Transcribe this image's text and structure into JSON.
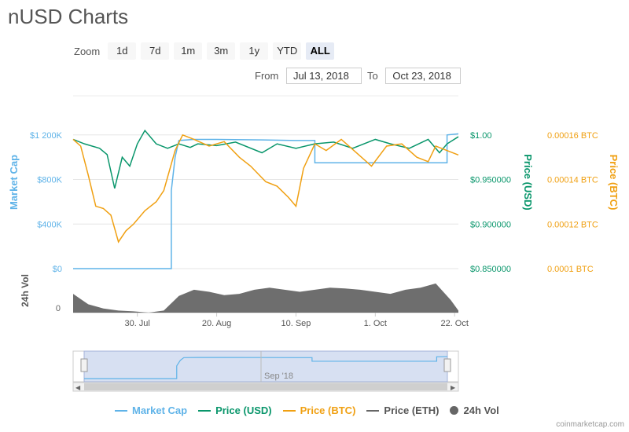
{
  "page_title": "nUSD Charts",
  "zoom": {
    "label": "Zoom",
    "buttons": [
      "1d",
      "7d",
      "1m",
      "3m",
      "1y",
      "YTD",
      "ALL"
    ],
    "active": "ALL"
  },
  "range": {
    "from_label": "From",
    "from_value": "Jul 13, 2018",
    "to_label": "To",
    "to_value": "Oct 23, 2018"
  },
  "colors": {
    "market_cap": "#5fb3e8",
    "price_usd": "#09966b",
    "price_btc": "#f0a012",
    "price_eth": "#666666",
    "volume": "#555555",
    "navigator_fill": "#d7e0f2"
  },
  "axes": {
    "left_title": "Market Cap",
    "left_ticks": [
      "$0",
      "$400K",
      "$800K",
      "$1 200K"
    ],
    "usd_title": "Price (USD)",
    "usd_ticks": [
      "$0.850000",
      "$0.900000",
      "$0.950000",
      "$1.00"
    ],
    "btc_title": "Price (BTC)",
    "btc_ticks": [
      "0.0001 BTC",
      "0.00012 BTC",
      "0.00014 BTC",
      "0.00016 BTC"
    ],
    "vol_title": "24h Vol",
    "vol_ticks": [
      "0"
    ],
    "x_ticks": [
      "30. Jul",
      "20. Aug",
      "10. Sep",
      "1. Oct",
      "22. Oct"
    ],
    "navigator_label": "Sep '18"
  },
  "legend": [
    "Market Cap",
    "Price (USD)",
    "Price (BTC)",
    "Price (ETH)",
    "24h Vol"
  ],
  "credit": "coinmarketcap.com",
  "chart_data": {
    "type": "line",
    "x_range": [
      "2018-07-13",
      "2018-10-23"
    ],
    "series": [
      {
        "name": "Market Cap",
        "axis": "left",
        "unit": "USD",
        "ylim": [
          0,
          1200000
        ],
        "x": [
          "2018-07-13",
          "2018-08-08",
          "2018-08-08",
          "2018-08-09",
          "2018-08-10",
          "2018-08-14",
          "2018-08-20",
          "2018-09-01",
          "2018-09-10",
          "2018-09-15",
          "2018-09-15",
          "2018-09-25",
          "2018-10-05",
          "2018-10-15",
          "2018-10-18",
          "2018-10-20",
          "2018-10-20",
          "2018-10-23"
        ],
        "values": [
          0,
          0,
          700000,
          1000000,
          1150000,
          1160000,
          1160000,
          1155000,
          1150000,
          1150000,
          950000,
          950000,
          950000,
          950000,
          950000,
          950000,
          1200000,
          1210000
        ]
      },
      {
        "name": "Price (USD)",
        "axis": "right",
        "unit": "USD",
        "ylim": [
          0.85,
          1.0
        ],
        "x": [
          "2018-07-13",
          "2018-07-16",
          "2018-07-20",
          "2018-07-22",
          "2018-07-24",
          "2018-07-26",
          "2018-07-28",
          "2018-07-30",
          "2018-08-01",
          "2018-08-04",
          "2018-08-07",
          "2018-08-10",
          "2018-08-13",
          "2018-08-15",
          "2018-08-20",
          "2018-08-25",
          "2018-09-01",
          "2018-09-05",
          "2018-09-10",
          "2018-09-15",
          "2018-09-20",
          "2018-09-25",
          "2018-10-01",
          "2018-10-05",
          "2018-10-10",
          "2018-10-15",
          "2018-10-18",
          "2018-10-20",
          "2018-10-23"
        ],
        "values": [
          0.995,
          0.99,
          0.985,
          0.978,
          0.94,
          0.975,
          0.965,
          0.99,
          1.005,
          0.99,
          0.985,
          0.99,
          0.986,
          0.99,
          0.988,
          0.992,
          0.98,
          0.99,
          0.985,
          0.99,
          0.992,
          0.985,
          0.995,
          0.99,
          0.985,
          0.995,
          0.98,
          0.99,
          0.998
        ]
      },
      {
        "name": "Price (BTC)",
        "axis": "right",
        "unit": "BTC",
        "ylim": [
          0.0001,
          0.00016
        ],
        "x": [
          "2018-07-13",
          "2018-07-15",
          "2018-07-17",
          "2018-07-19",
          "2018-07-21",
          "2018-07-23",
          "2018-07-25",
          "2018-07-27",
          "2018-07-29",
          "2018-08-01",
          "2018-08-04",
          "2018-08-06",
          "2018-08-09",
          "2018-08-11",
          "2018-08-14",
          "2018-08-18",
          "2018-08-22",
          "2018-08-26",
          "2018-08-29",
          "2018-09-02",
          "2018-09-05",
          "2018-09-08",
          "2018-09-10",
          "2018-09-12",
          "2018-09-15",
          "2018-09-18",
          "2018-09-22",
          "2018-09-26",
          "2018-09-30",
          "2018-10-04",
          "2018-10-08",
          "2018-10-12",
          "2018-10-15",
          "2018-10-17",
          "2018-10-20",
          "2018-10-23"
        ],
        "values": [
          0.000158,
          0.000155,
          0.000142,
          0.000128,
          0.000127,
          0.000124,
          0.000112,
          0.000117,
          0.00012,
          0.000126,
          0.00013,
          0.000135,
          0.000153,
          0.00016,
          0.000158,
          0.000155,
          0.000157,
          0.00015,
          0.000146,
          0.000139,
          0.000137,
          0.000132,
          0.000128,
          0.000145,
          0.000156,
          0.000153,
          0.000158,
          0.000152,
          0.000146,
          0.000155,
          0.000156,
          0.00015,
          0.000148,
          0.000155,
          0.000153,
          0.000151
        ]
      },
      {
        "name": "24h Vol",
        "axis": "vol",
        "x": [
          "2018-07-13",
          "2018-07-17",
          "2018-07-21",
          "2018-07-25",
          "2018-07-29",
          "2018-08-02",
          "2018-08-06",
          "2018-08-10",
          "2018-08-14",
          "2018-08-18",
          "2018-08-22",
          "2018-08-26",
          "2018-08-30",
          "2018-09-03",
          "2018-09-07",
          "2018-09-11",
          "2018-09-15",
          "2018-09-19",
          "2018-09-23",
          "2018-09-27",
          "2018-10-01",
          "2018-10-05",
          "2018-10-09",
          "2018-10-13",
          "2018-10-17",
          "2018-10-21",
          "2018-10-23"
        ],
        "values": [
          0.45,
          0.2,
          0.1,
          0.05,
          0.03,
          0.0,
          0.05,
          0.4,
          0.55,
          0.5,
          0.42,
          0.45,
          0.55,
          0.6,
          0.55,
          0.5,
          0.55,
          0.6,
          0.58,
          0.55,
          0.5,
          0.45,
          0.55,
          0.6,
          0.7,
          0.3,
          0.05
        ]
      }
    ]
  }
}
